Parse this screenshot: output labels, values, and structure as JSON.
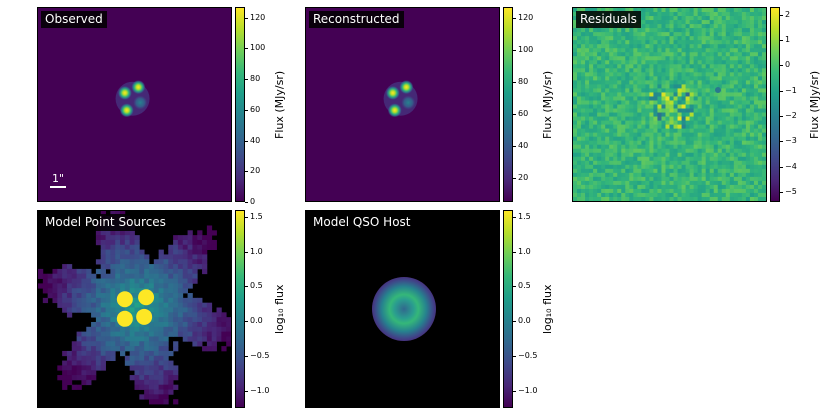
{
  "chart_data": [
    {
      "type": "heatmap",
      "title": "Observed",
      "colorbar": {
        "label": "Flux (MJy/sr)",
        "ticks": [
          "0",
          "20",
          "40",
          "60",
          "80",
          "100",
          "120"
        ],
        "range": [
          0,
          127
        ]
      },
      "scale_bar": "1\"",
      "sources": [
        [
          0.45,
          0.44,
          1.0
        ],
        [
          0.52,
          0.41,
          1.0
        ],
        [
          0.53,
          0.49,
          0.85
        ],
        [
          0.46,
          0.53,
          1.0
        ]
      ],
      "colormap": "viridis"
    },
    {
      "type": "heatmap",
      "title": "Reconstructed",
      "colorbar": {
        "label": "Flux (MJy/sr)",
        "ticks": [
          "20",
          "40",
          "60",
          "80",
          "100",
          "120"
        ],
        "range": [
          5,
          127
        ]
      },
      "sources": [
        [
          0.45,
          0.44,
          1.0
        ],
        [
          0.52,
          0.41,
          1.0
        ],
        [
          0.53,
          0.49,
          0.85
        ],
        [
          0.46,
          0.53,
          1.0
        ]
      ],
      "colormap": "viridis"
    },
    {
      "type": "heatmap",
      "title": "Residuals",
      "colorbar": {
        "label": "Flux (MJy/sr)",
        "ticks": [
          "2",
          "1",
          "0",
          "−1",
          "−2",
          "−3",
          "−4",
          "−5"
        ],
        "range": [
          -5.4,
          2.3
        ]
      },
      "colormap": "viridis"
    },
    {
      "type": "heatmap",
      "title": "Model Point Sources",
      "colorbar": {
        "label": "log₁₀ flux",
        "ticks": [
          "1.5",
          "1.0",
          "0.5",
          "0.0",
          "−0.5",
          "−1.0"
        ],
        "range": [
          -1.25,
          1.6
        ]
      },
      "colormap": "viridis"
    },
    {
      "type": "heatmap",
      "title": "Model QSO Host",
      "colorbar": {
        "label": "log₁₀ flux",
        "ticks": [
          "1.5",
          "1.0",
          "0.5",
          "0.0",
          "−0.5",
          "−1.0"
        ],
        "range": [
          -1.25,
          1.6
        ]
      },
      "colormap": "viridis"
    }
  ]
}
